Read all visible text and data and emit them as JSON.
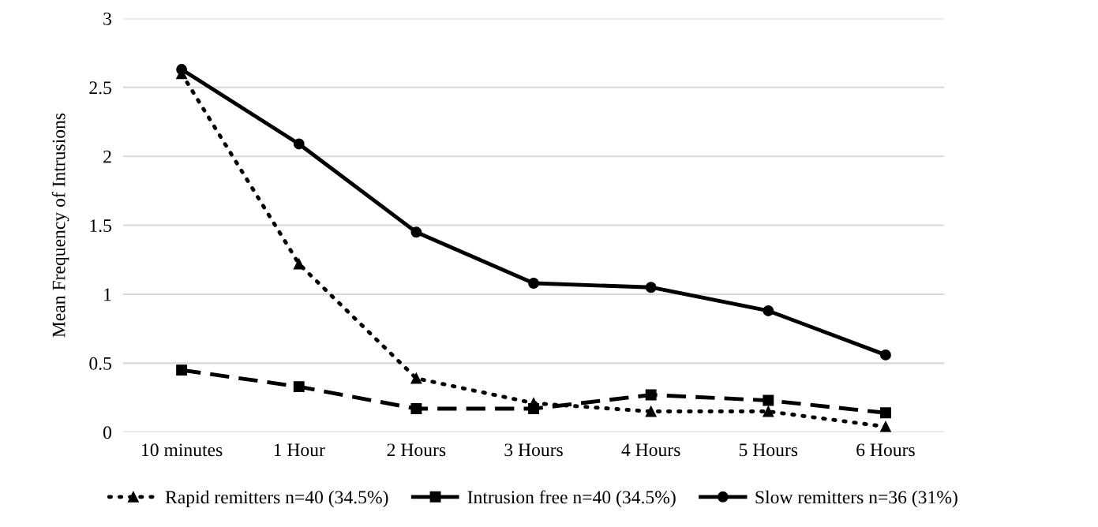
{
  "chart_data": {
    "type": "line",
    "ylabel": "Mean Frequency of Intrusions",
    "categories": [
      "10 minutes",
      "1 Hour",
      "2 Hours",
      "3 Hours",
      "4 Hours",
      "5 Hours",
      "6 Hours"
    ],
    "series": [
      {
        "name": "Rapid remitters n=40 (34.5%)",
        "color": "#000000",
        "marker": "triangle",
        "line_style": "dotted",
        "values": [
          2.6,
          1.22,
          0.39,
          0.21,
          0.15,
          0.15,
          0.04
        ]
      },
      {
        "name": "Intrusion free n=40 (34.5%)",
        "color": "#000000",
        "marker": "square",
        "line_style": "dashed",
        "values": [
          0.45,
          0.33,
          0.17,
          0.17,
          0.27,
          0.23,
          0.14
        ]
      },
      {
        "name": "Slow remitters n=36 (31%)",
        "color": "#000000",
        "marker": "circle",
        "line_style": "solid",
        "values": [
          2.63,
          2.09,
          1.45,
          1.08,
          1.05,
          0.88,
          0.56
        ]
      }
    ],
    "ylim": [
      0,
      3
    ],
    "yticks": [
      0,
      0.5,
      1,
      1.5,
      2,
      2.5,
      3
    ],
    "grid": "y",
    "legend": "bottom"
  }
}
